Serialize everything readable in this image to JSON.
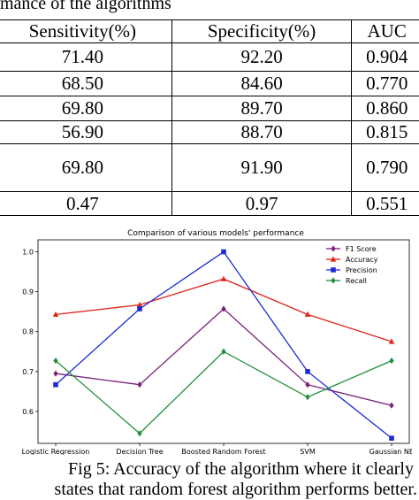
{
  "caption_top": "mance of the algorithms",
  "table": {
    "headers": [
      "Sensitivity(%)",
      "Specificity(%)",
      "AUC"
    ],
    "rows": [
      [
        "71.40",
        "92.20",
        "0.904"
      ],
      [
        "68.50",
        "84.60",
        "0.770"
      ],
      [
        "69.80",
        "89.70",
        "0.860"
      ],
      [
        "56.90",
        "88.70",
        "0.815"
      ],
      [
        "69.80",
        "91.90",
        "0.790"
      ],
      [
        "0.47",
        "0.97",
        "0.551"
      ]
    ]
  },
  "chart_data": {
    "type": "line",
    "title": "Comparison of various models' performance",
    "categories": [
      "Logistic Regression",
      "Decision Tree",
      "Boosted Random Forest",
      "SVM",
      "Gaussian NB"
    ],
    "series": [
      {
        "name": "F1 Score",
        "color": "#7b1f7b",
        "marker": "diamond",
        "values": [
          0.695,
          0.667,
          0.857,
          0.667,
          0.615
        ]
      },
      {
        "name": "Accuracy",
        "color": "#e0251b",
        "marker": "triangle",
        "values": [
          0.843,
          0.867,
          0.932,
          0.843,
          0.775
        ]
      },
      {
        "name": "Precision",
        "color": "#1b2bd6",
        "marker": "square",
        "values": [
          0.667,
          0.857,
          1.0,
          0.7,
          0.533
        ]
      },
      {
        "name": "Recall",
        "color": "#1f8f3a",
        "marker": "diamond",
        "values": [
          0.727,
          0.545,
          0.75,
          0.636,
          0.727
        ]
      }
    ],
    "yticks": [
      "0.6",
      "0.7",
      "0.8",
      "0.9",
      "1.0"
    ],
    "ylim": [
      0.52,
      1.03
    ],
    "legend": "top-right",
    "grid": false
  },
  "figure_caption": {
    "line1": "Fig 5:  Accuracy of the algorithm where it clearly",
    "line2": "states that random forest algorithm performs better."
  }
}
